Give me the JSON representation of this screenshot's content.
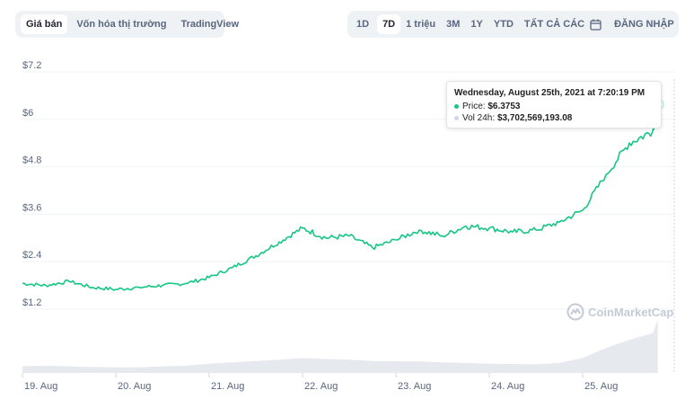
{
  "toolbar_left": {
    "tabs": [
      "Giá bán",
      "Vốn hóa thị trường",
      "TradingView"
    ],
    "active": 0
  },
  "toolbar_right": {
    "ranges": [
      "1D",
      "7D",
      "1 triệu",
      "3M",
      "1Y",
      "YTD",
      "TẤT CẢ CÁC"
    ],
    "active": 1,
    "calendar_icon": "calendar-icon",
    "login_label": "ĐĂNG NHẬP"
  },
  "tooltip": {
    "date": "Wednesday, August 25th, 2021 at 7:20:19 PM",
    "price_label": "Price:",
    "price_value": "$6.3753",
    "vol_label": "Vol 24h:",
    "vol_value": "$3,702,569,193.08",
    "price_color": "#16c784",
    "vol_color": "#cfd6e4"
  },
  "watermark": {
    "text": "CoinMarketCap",
    "icon": "coinmarketcap-logo-icon"
  },
  "colors": {
    "line": "#16c784",
    "volume": "#e6e9ee",
    "grid": "#eff2f5"
  },
  "chart_data": {
    "type": "line",
    "y_ticks": [
      "$7.2",
      "$6",
      "$4.8",
      "$3.6",
      "$2.4",
      "$1.2"
    ],
    "y_tick_values": [
      7.2,
      6,
      4.8,
      3.6,
      2.4,
      1.2
    ],
    "ylim": [
      0,
      7.7
    ],
    "x_ticks": [
      "19. Aug",
      "20. Aug",
      "21. Aug",
      "22. Aug",
      "23. Aug",
      "24. Aug",
      "25. Aug"
    ],
    "x": [
      "19. Aug 00:00",
      "19. Aug 06:00",
      "19. Aug 12:00",
      "19. Aug 18:00",
      "20. Aug 00:00",
      "20. Aug 06:00",
      "20. Aug 12:00",
      "20. Aug 18:00",
      "21. Aug 00:00",
      "21. Aug 06:00",
      "21. Aug 12:00",
      "21. Aug 18:00",
      "22. Aug 00:00",
      "22. Aug 06:00",
      "22. Aug 12:00",
      "22. Aug 18:00",
      "23. Aug 00:00",
      "23. Aug 06:00",
      "23. Aug 12:00",
      "23. Aug 18:00",
      "24. Aug 00:00",
      "24. Aug 06:00",
      "24. Aug 12:00",
      "24. Aug 18:00",
      "25. Aug 00:00",
      "25. Aug 06:00",
      "25. Aug 12:00",
      "25. Aug 18:00",
      "25. Aug 19:20"
    ],
    "series": [
      {
        "values": [
          1.85,
          1.8,
          1.9,
          1.75,
          1.7,
          1.75,
          1.8,
          1.85,
          2.0,
          2.25,
          2.55,
          2.9,
          3.25,
          3.0,
          3.05,
          2.75,
          2.95,
          3.2,
          3.05,
          3.3,
          3.25,
          3.15,
          3.2,
          3.4,
          3.7,
          4.6,
          5.4,
          5.7,
          6.38
        ]
      },
      {
        "values": [
          0.2,
          0.22,
          0.2,
          0.18,
          0.17,
          0.17,
          0.2,
          0.22,
          0.28,
          0.32,
          0.36,
          0.4,
          0.45,
          0.42,
          0.4,
          0.36,
          0.35,
          0.35,
          0.32,
          0.3,
          0.28,
          0.27,
          0.26,
          0.3,
          0.45,
          0.75,
          1.0,
          1.2,
          1.6
        ]
      }
    ]
  }
}
